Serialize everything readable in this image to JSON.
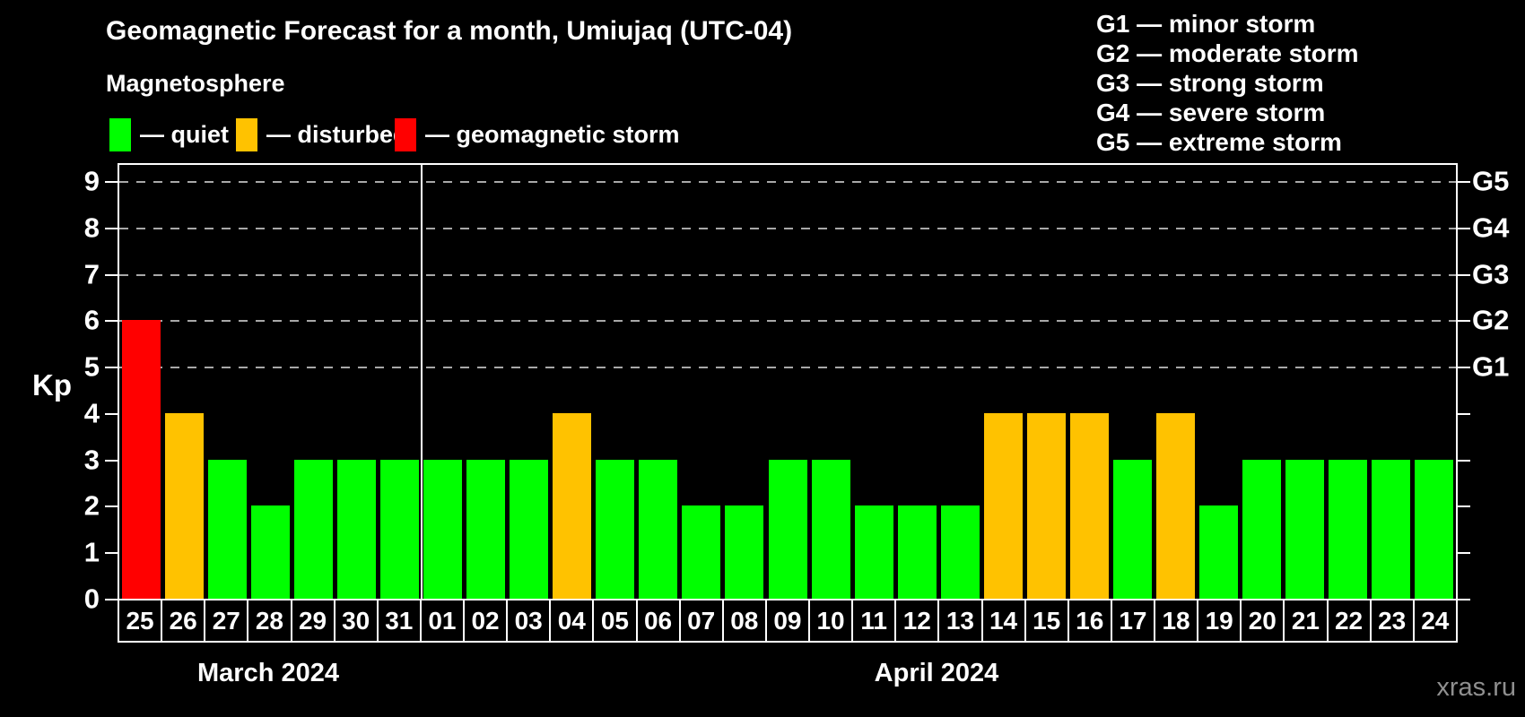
{
  "title": "Geomagnetic Forecast for a month, Umiujaq (UTC-04)",
  "subtitle": "Magnetosphere",
  "y_axis_label": "Kp",
  "watermark": "xras.ru",
  "colors": {
    "background": "#000000",
    "quiet": "#00ff00",
    "disturbed": "#ffc200",
    "storm": "#ff0000",
    "axis": "#ffffff",
    "gridline": "#a8a8a8",
    "watermark_text": "#8f8f8f"
  },
  "legend": [
    {
      "status": "quiet",
      "label": "— quiet"
    },
    {
      "status": "disturbed",
      "label": "— disturbed"
    },
    {
      "status": "storm",
      "label": "— geomagnetic storm"
    }
  ],
  "g_legend": [
    "G1 — minor storm",
    "G2 — moderate storm",
    "G3 — strong storm",
    "G4 — severe storm",
    "G5 — extreme storm"
  ],
  "chart_data": {
    "type": "bar",
    "title": "Geomagnetic Forecast for a month, Umiujaq (UTC-04)",
    "ylabel": "Kp",
    "ylim": [
      0,
      9.35
    ],
    "y_ticks": [
      0,
      1,
      2,
      3,
      4,
      5,
      6,
      7,
      8,
      9
    ],
    "grid_levels": [
      5,
      6,
      7,
      8,
      9
    ],
    "grid_style": "dashed horizontal lines at storm levels only",
    "right_axis": [
      {
        "kp": 5,
        "label": "G1"
      },
      {
        "kp": 6,
        "label": "G2"
      },
      {
        "kp": 7,
        "label": "G3"
      },
      {
        "kp": 8,
        "label": "G4"
      },
      {
        "kp": 9,
        "label": "G5"
      }
    ],
    "legend_position": "top-left",
    "months": [
      {
        "label": "March 2024",
        "days": [
          "25",
          "26",
          "27",
          "28",
          "29",
          "30",
          "31"
        ],
        "values": [
          6,
          4,
          3,
          2,
          3,
          3,
          3
        ],
        "statuses": [
          "storm",
          "disturbed",
          "quiet",
          "quiet",
          "quiet",
          "quiet",
          "quiet"
        ]
      },
      {
        "label": "April 2024",
        "days": [
          "01",
          "02",
          "03",
          "04",
          "05",
          "06",
          "07",
          "08",
          "09",
          "10",
          "11",
          "12",
          "13",
          "14",
          "15",
          "16",
          "17",
          "18",
          "19",
          "20",
          "21",
          "22",
          "23",
          "24"
        ],
        "values": [
          3,
          3,
          3,
          4,
          3,
          3,
          2,
          2,
          3,
          3,
          2,
          2,
          2,
          4,
          4,
          4,
          3,
          4,
          2,
          3,
          3,
          3,
          3,
          3
        ],
        "statuses": [
          "quiet",
          "quiet",
          "quiet",
          "disturbed",
          "quiet",
          "quiet",
          "quiet",
          "quiet",
          "quiet",
          "quiet",
          "quiet",
          "quiet",
          "quiet",
          "disturbed",
          "disturbed",
          "disturbed",
          "quiet",
          "disturbed",
          "quiet",
          "quiet",
          "quiet",
          "quiet",
          "quiet",
          "quiet"
        ]
      }
    ]
  }
}
